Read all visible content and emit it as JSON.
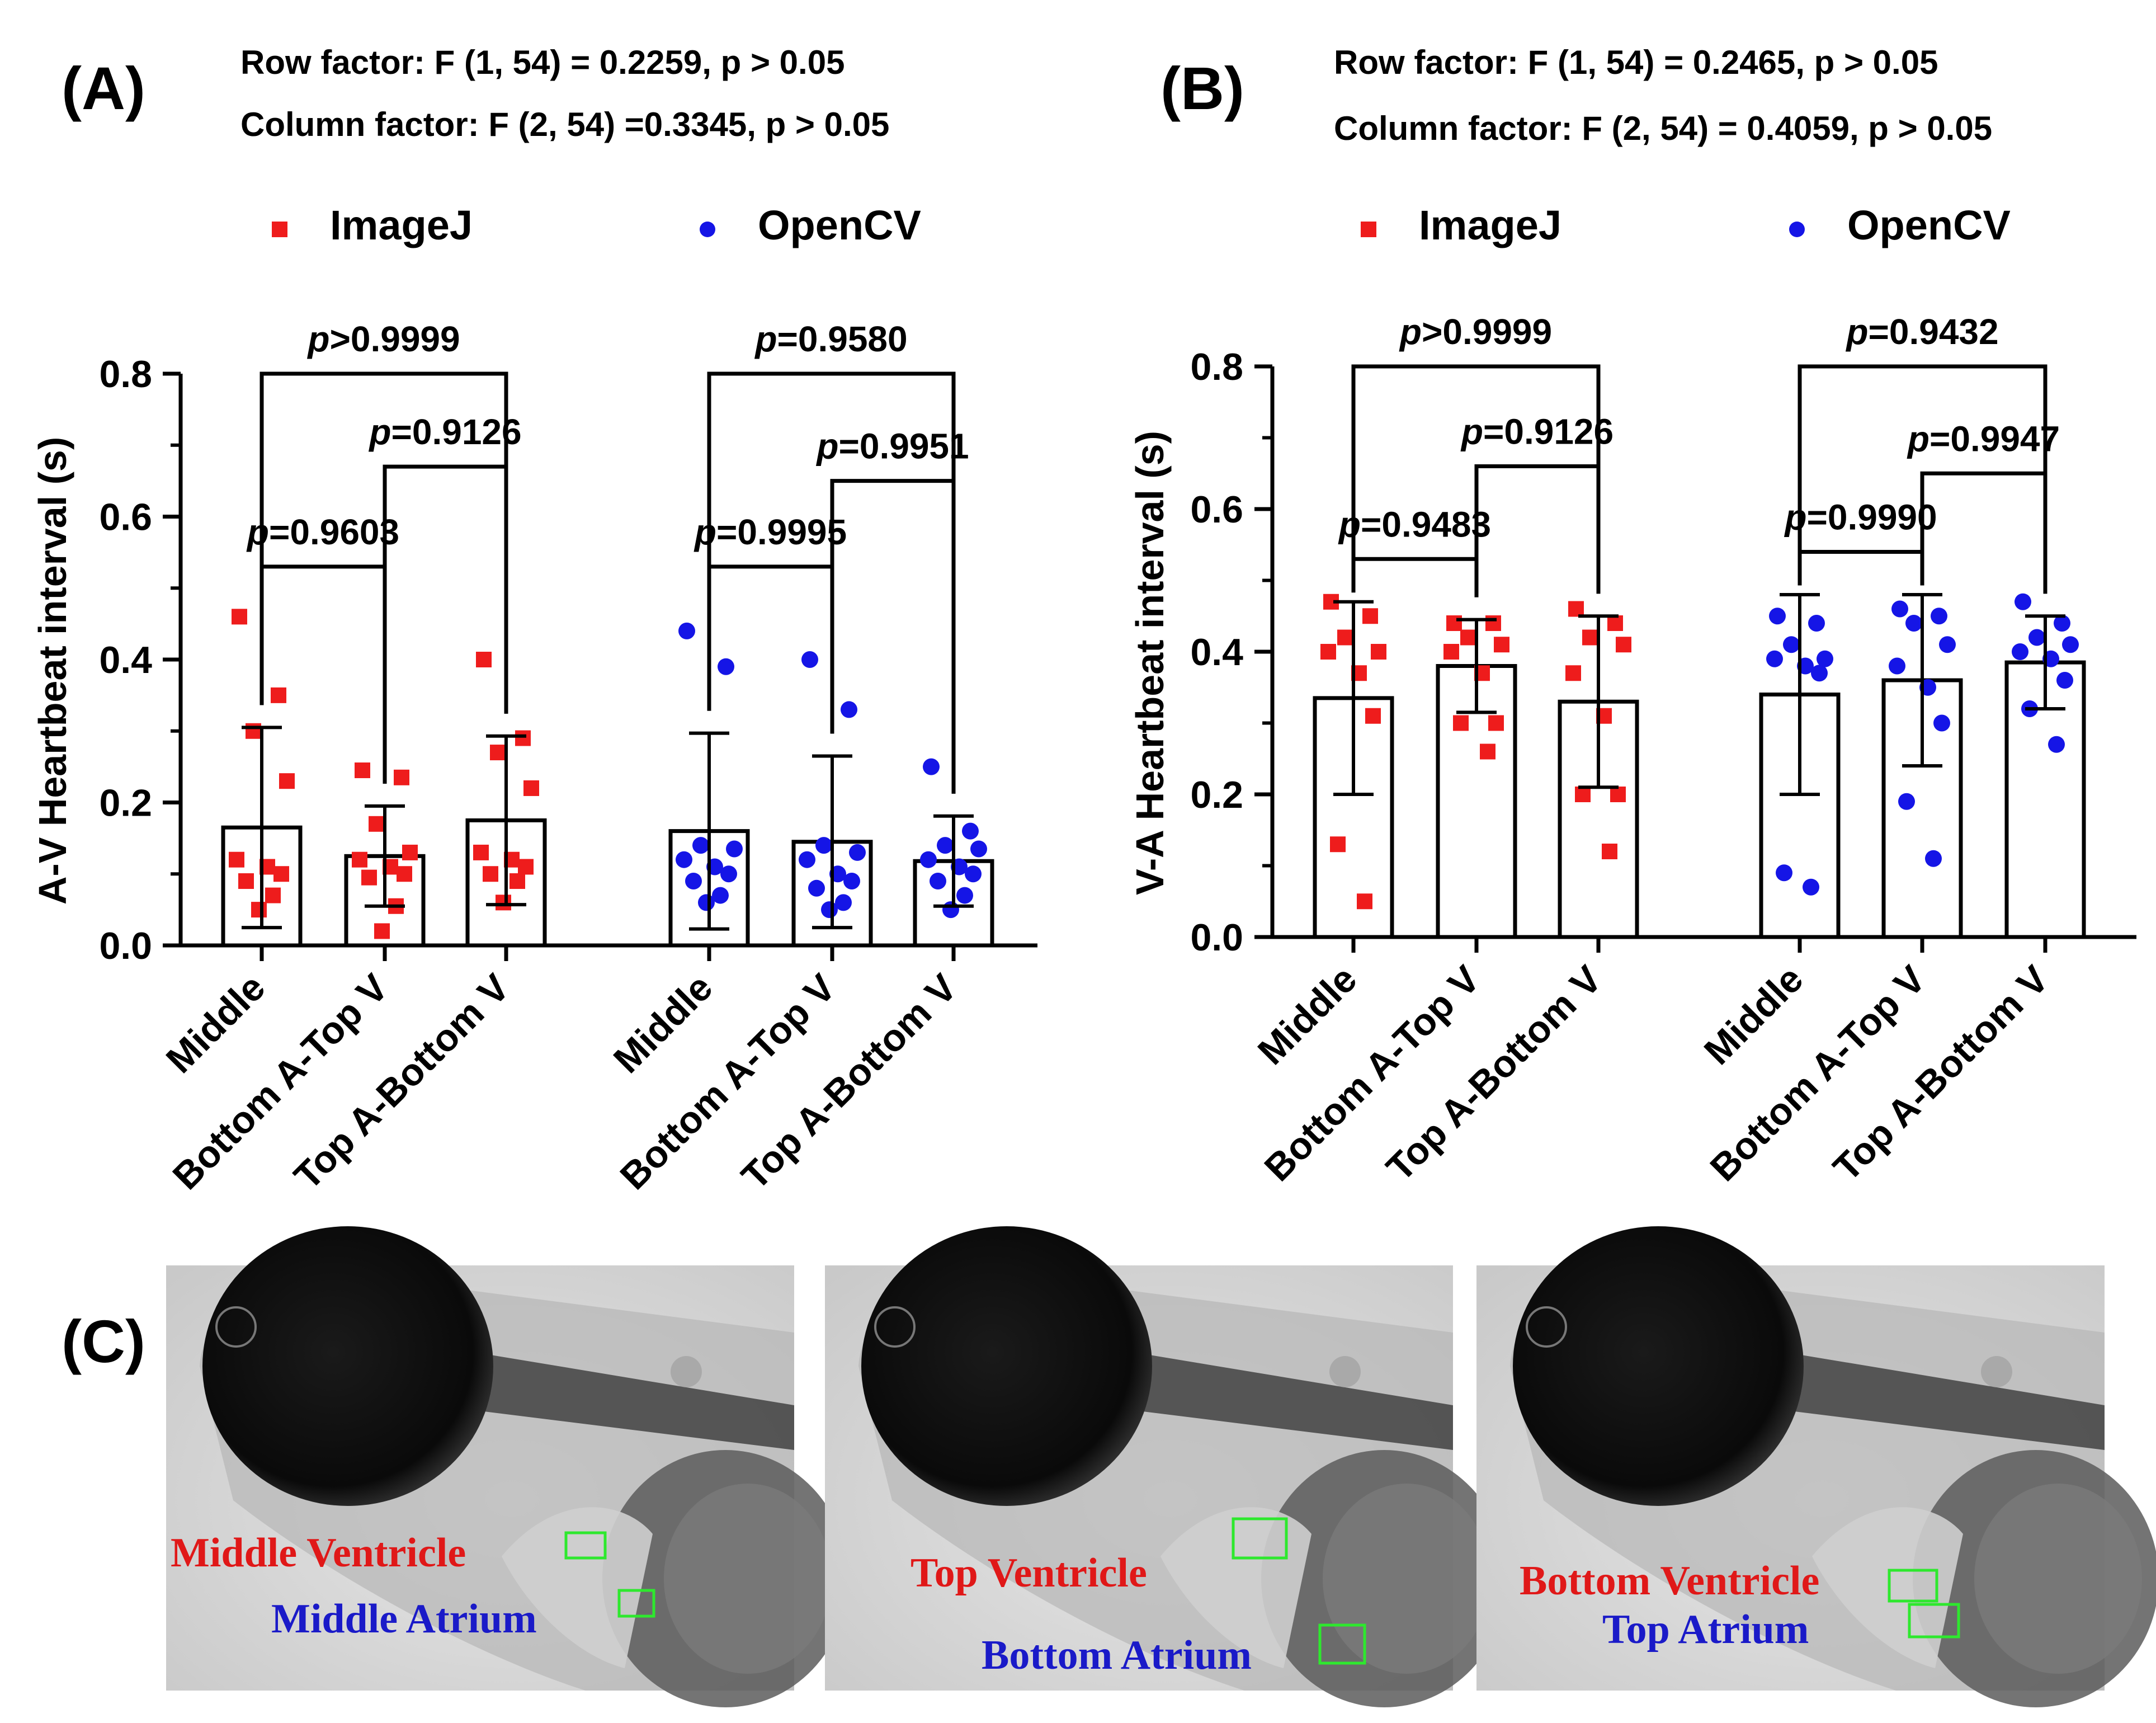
{
  "panel_labels": {
    "a": "(A)",
    "b": "(B)",
    "c": "(C)"
  },
  "legend": [
    {
      "label": "ImageJ",
      "color": "#ee1c1c"
    },
    {
      "label": "OpenCV",
      "color": "#1515e6"
    }
  ],
  "group_labels": [
    "Middle",
    "Bottom A-Top V",
    "Top A-Bottom V"
  ],
  "chart_data": [
    {
      "type": "bar",
      "panel": "A",
      "stats": [
        "Row factor: F (1, 54) = 0.2259, p > 0.05",
        "Column factor: F (2, 54) =0.3345, p > 0.05"
      ],
      "ylabel": "A-V Heartbeat interval (s)",
      "ylim": [
        0,
        0.8
      ],
      "yticks": [
        "0.0",
        "0.2",
        "0.4",
        "0.6",
        "0.8"
      ],
      "categories": [
        "Middle",
        "Bottom A-Top V",
        "Top A-Bottom V"
      ],
      "series": [
        {
          "name": "ImageJ",
          "means": [
            0.165,
            0.125,
            0.175
          ],
          "sd": [
            0.14,
            0.07,
            0.118
          ],
          "points": [
            [
              0.46,
              0.35,
              0.3,
              0.23,
              0.12,
              0.11,
              0.1,
              0.09,
              0.07,
              0.05
            ],
            [
              0.245,
              0.235,
              0.17,
              0.13,
              0.12,
              0.11,
              0.1,
              0.095,
              0.055,
              0.02
            ],
            [
              0.4,
              0.29,
              0.27,
              0.22,
              0.13,
              0.12,
              0.11,
              0.1,
              0.09,
              0.06
            ]
          ]
        },
        {
          "name": "OpenCV",
          "means": [
            0.16,
            0.145,
            0.118
          ],
          "sd": [
            0.137,
            0.12,
            0.063
          ],
          "points": [
            [
              0.44,
              0.39,
              0.14,
              0.135,
              0.12,
              0.11,
              0.1,
              0.09,
              0.07,
              0.06
            ],
            [
              0.4,
              0.33,
              0.14,
              0.13,
              0.12,
              0.1,
              0.09,
              0.08,
              0.06,
              0.05
            ],
            [
              0.25,
              0.16,
              0.14,
              0.135,
              0.12,
              0.11,
              0.1,
              0.09,
              0.07,
              0.05
            ]
          ]
        }
      ],
      "comparisons": [
        {
          "series": "ImageJ",
          "pair": [
            0,
            2
          ],
          "label": "p>0.9999",
          "y": 0.8
        },
        {
          "series": "ImageJ",
          "pair": [
            1,
            2
          ],
          "label": "p=0.9126",
          "y": 0.67
        },
        {
          "series": "ImageJ",
          "pair": [
            0,
            1
          ],
          "label": "p=0.9603",
          "y": 0.53
        },
        {
          "series": "OpenCV",
          "pair": [
            0,
            2
          ],
          "label": "p=0.9580",
          "y": 0.8
        },
        {
          "series": "OpenCV",
          "pair": [
            1,
            2
          ],
          "label": "p=0.9951",
          "y": 0.65
        },
        {
          "series": "OpenCV",
          "pair": [
            0,
            1
          ],
          "label": "p=0.9995",
          "y": 0.53
        }
      ]
    },
    {
      "type": "bar",
      "panel": "B",
      "stats": [
        "Row factor: F (1, 54) = 0.2465, p > 0.05",
        "Column factor: F (2, 54) = 0.4059, p > 0.05"
      ],
      "ylabel": "V-A Heartbeat interval (s)",
      "ylim": [
        0,
        0.8
      ],
      "yticks": [
        "0.0",
        "0.2",
        "0.4",
        "0.6",
        "0.8"
      ],
      "categories": [
        "Middle",
        "Bottom A-Top V",
        "Top A-Bottom V"
      ],
      "series": [
        {
          "name": "ImageJ",
          "means": [
            0.335,
            0.38,
            0.33
          ],
          "sd": [
            0.135,
            0.065,
            0.12
          ],
          "points": [
            [
              0.47,
              0.45,
              0.42,
              0.4,
              0.4,
              0.37,
              0.31,
              0.13,
              0.05
            ],
            [
              0.44,
              0.44,
              0.42,
              0.41,
              0.4,
              0.37,
              0.3,
              0.3,
              0.26
            ],
            [
              0.46,
              0.44,
              0.42,
              0.41,
              0.37,
              0.31,
              0.2,
              0.2,
              0.12
            ]
          ]
        },
        {
          "name": "OpenCV",
          "means": [
            0.34,
            0.36,
            0.385
          ],
          "sd": [
            0.14,
            0.12,
            0.065
          ],
          "points": [
            [
              0.45,
              0.44,
              0.41,
              0.39,
              0.39,
              0.38,
              0.37,
              0.09,
              0.07
            ],
            [
              0.46,
              0.45,
              0.44,
              0.41,
              0.38,
              0.35,
              0.3,
              0.19,
              0.11
            ],
            [
              0.47,
              0.44,
              0.42,
              0.41,
              0.4,
              0.39,
              0.36,
              0.32,
              0.27
            ]
          ]
        }
      ],
      "comparisons": [
        {
          "series": "ImageJ",
          "pair": [
            0,
            2
          ],
          "label": "p>0.9999",
          "y": 0.8
        },
        {
          "series": "ImageJ",
          "pair": [
            1,
            2
          ],
          "label": "p=0.9126",
          "y": 0.66
        },
        {
          "series": "ImageJ",
          "pair": [
            0,
            1
          ],
          "label": "p=0.9483",
          "y": 0.53
        },
        {
          "series": "OpenCV",
          "pair": [
            0,
            2
          ],
          "label": "p=0.9432",
          "y": 0.8
        },
        {
          "series": "OpenCV",
          "pair": [
            1,
            2
          ],
          "label": "p=0.9947",
          "y": 0.65
        },
        {
          "series": "OpenCV",
          "pair": [
            0,
            1
          ],
          "label": "p=0.9990",
          "y": 0.54
        }
      ]
    }
  ],
  "photos": [
    {
      "ventricle": "Middle Ventricle",
      "atrium": "Middle Atrium"
    },
    {
      "ventricle": "Top Ventricle",
      "atrium": "Bottom Atrium"
    },
    {
      "ventricle": "Bottom Ventricle",
      "atrium": "Top  Atrium"
    }
  ],
  "colors": {
    "ventricle_label": "#e01818",
    "atrium_label": "#1a1ac8",
    "roi_box": "#2ee82e"
  }
}
